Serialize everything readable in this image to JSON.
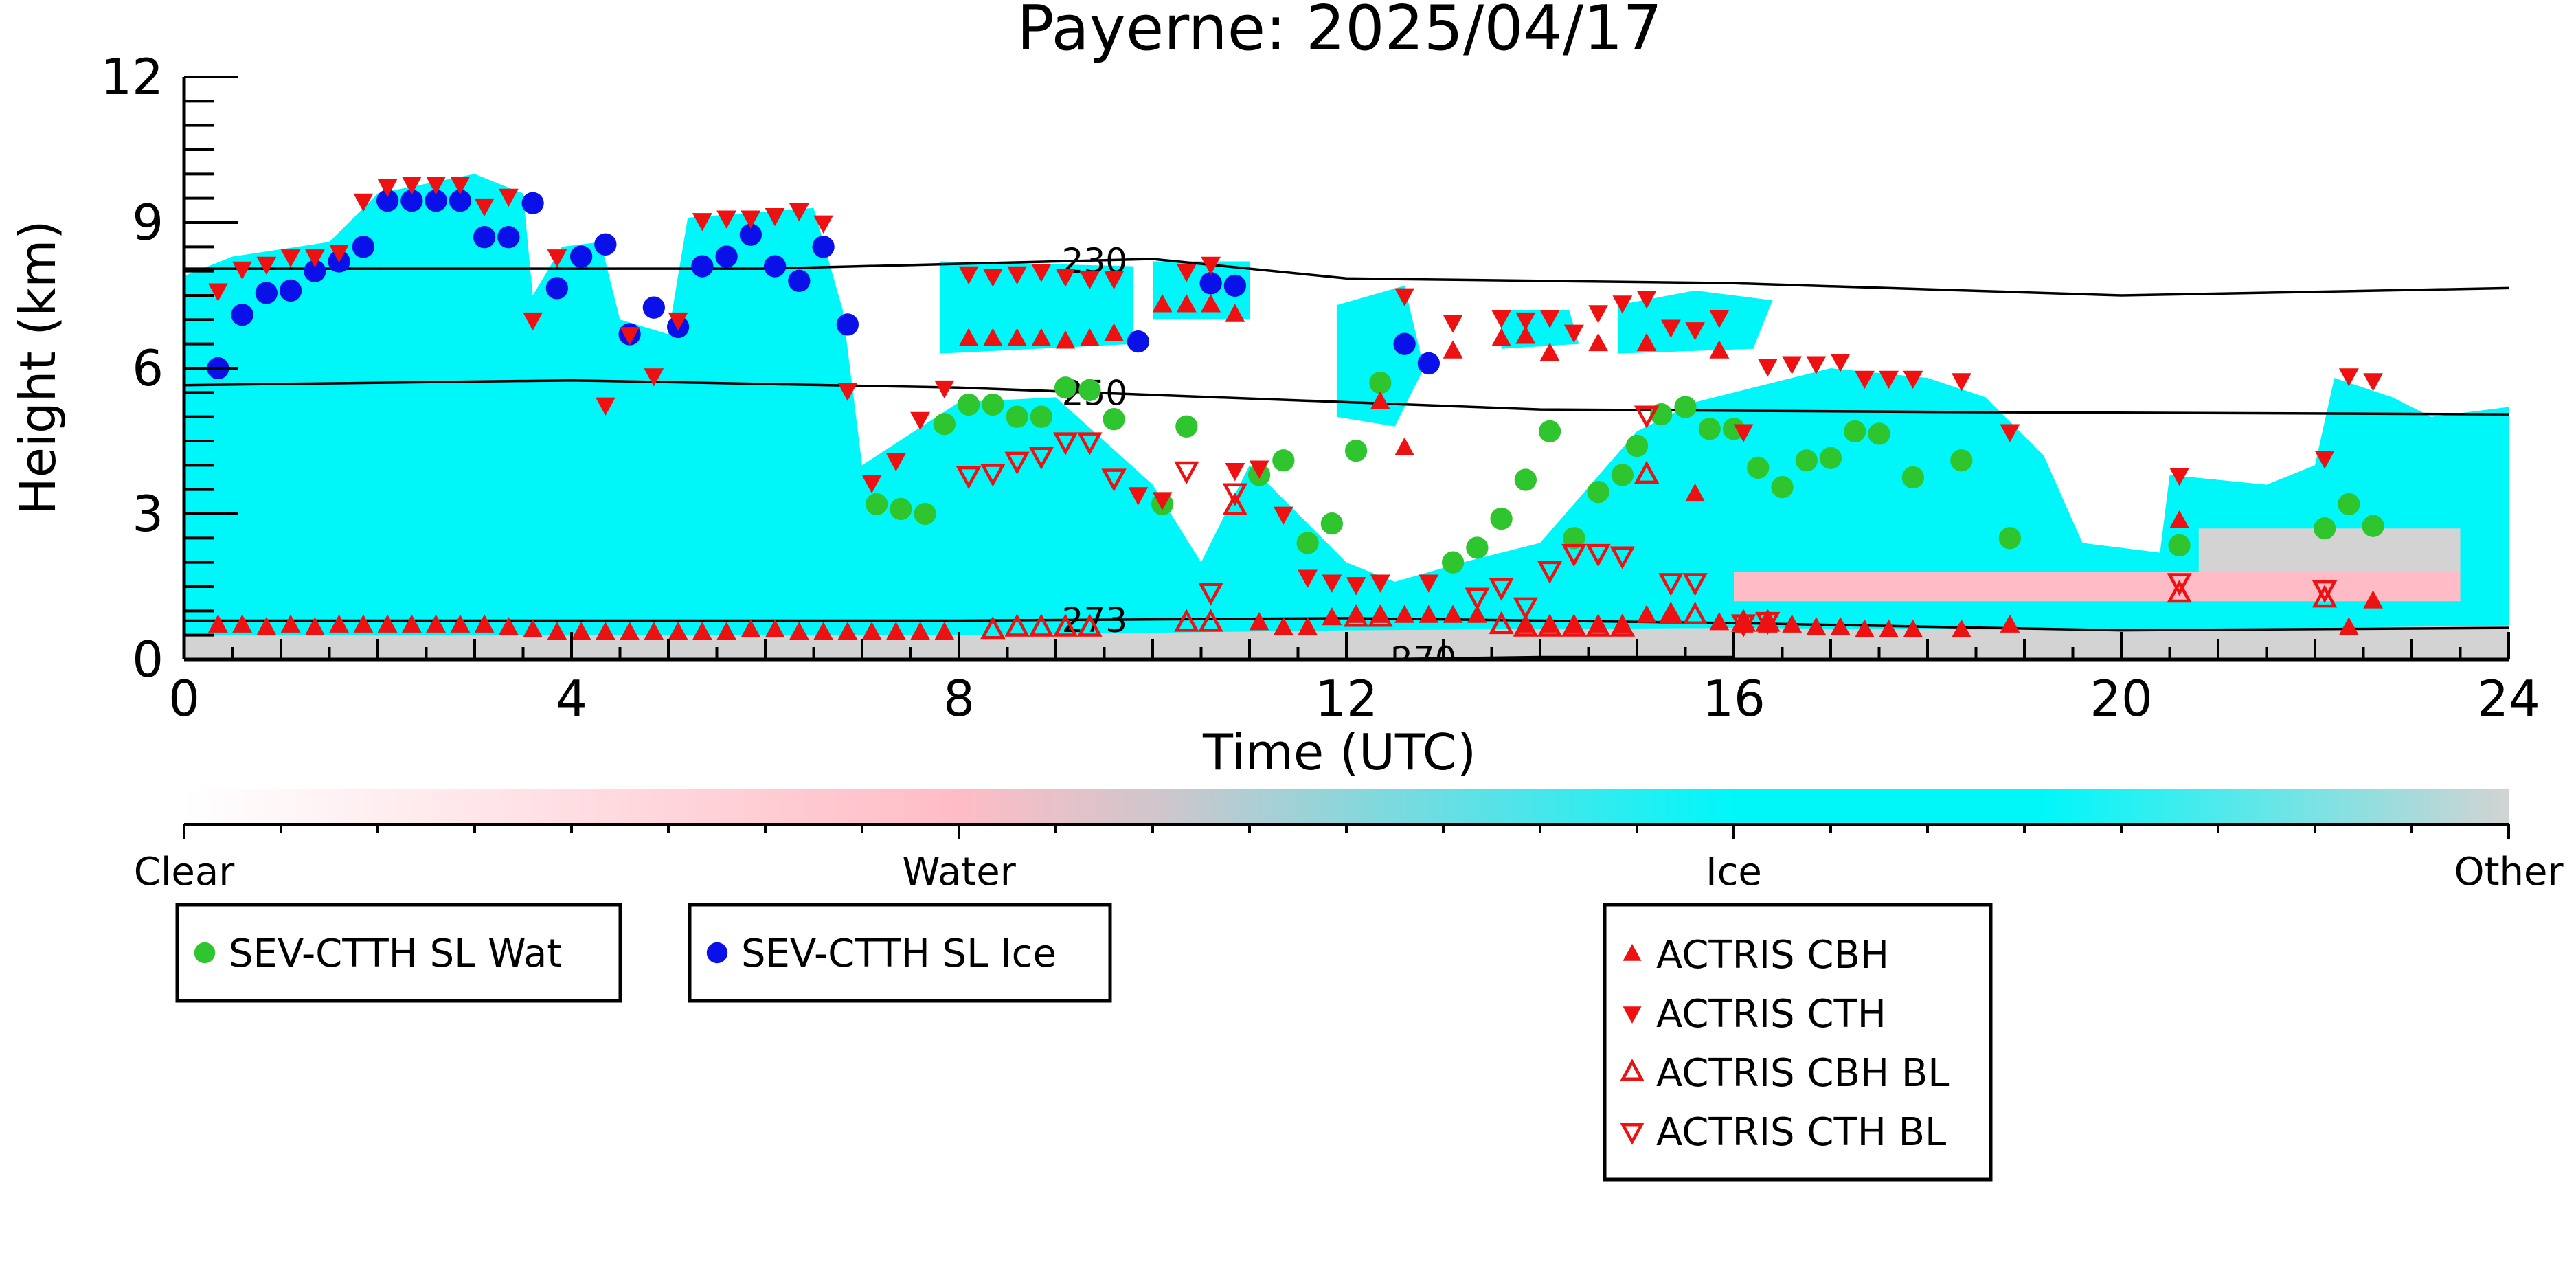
{
  "chart_data": {
    "type": "scatter",
    "title": "Payerne: 2025/04/17",
    "xlabel": "Time (UTC)",
    "ylabel": "Height (km)",
    "xlim": [
      0,
      24
    ],
    "ylim": [
      0,
      12
    ],
    "x_ticks": [
      "0",
      "4",
      "8",
      "12",
      "16",
      "20",
      "24"
    ],
    "y_ticks": [
      "0",
      "3",
      "6",
      "9",
      "12"
    ],
    "colorbar": {
      "labels": [
        "Clear",
        "Water",
        "Ice",
        "Other"
      ],
      "colors": [
        "#ffffff",
        "#ffbcc6",
        "#00f7fa",
        "#d3d3d3"
      ]
    },
    "isotherms": [
      {
        "label": "230",
        "label_x": 9.4,
        "points": [
          [
            0,
            8.05
          ],
          [
            6,
            8.05
          ],
          [
            10,
            8.25
          ],
          [
            12,
            7.85
          ],
          [
            16,
            7.75
          ],
          [
            20,
            7.5
          ],
          [
            24,
            7.65
          ]
        ]
      },
      {
        "label": "250",
        "label_x": 9.4,
        "points": [
          [
            0,
            5.65
          ],
          [
            4,
            5.75
          ],
          [
            8,
            5.6
          ],
          [
            10,
            5.45
          ],
          [
            14,
            5.15
          ],
          [
            18,
            5.1
          ],
          [
            24,
            5.05
          ]
        ]
      },
      {
        "label": "273",
        "label_x": 9.4,
        "points": [
          [
            0,
            0.8
          ],
          [
            8,
            0.8
          ],
          [
            12,
            0.85
          ],
          [
            16,
            0.75
          ],
          [
            20,
            0.6
          ],
          [
            24,
            0.65
          ]
        ]
      },
      {
        "label": "270",
        "label_x": 12.8,
        "points": [
          [
            12.2,
            0.0
          ],
          [
            14,
            0.05
          ],
          [
            16,
            0.05
          ]
        ]
      }
    ],
    "cloud_regions": [
      {
        "type": "Ice",
        "points": [
          [
            0,
            0.4
          ],
          [
            0,
            7.9
          ],
          [
            0.5,
            8.3
          ],
          [
            1.5,
            8.6
          ],
          [
            2.0,
            9.6
          ],
          [
            3.0,
            10.0
          ],
          [
            3.5,
            9.6
          ],
          [
            3.6,
            7.5
          ],
          [
            3.9,
            8.5
          ],
          [
            4.3,
            8.6
          ],
          [
            4.5,
            7.0
          ],
          [
            5.0,
            6.7
          ],
          [
            5.2,
            9.1
          ],
          [
            6.5,
            9.3
          ],
          [
            6.8,
            7.2
          ],
          [
            7.0,
            4.0
          ],
          [
            8.0,
            5.3
          ],
          [
            9.0,
            5.4
          ],
          [
            10.0,
            3.6
          ],
          [
            10.5,
            2.0
          ],
          [
            11.0,
            4.0
          ],
          [
            12.0,
            2.0
          ],
          [
            12.5,
            1.6
          ],
          [
            13.2,
            2.0
          ],
          [
            14.0,
            2.4
          ],
          [
            15.0,
            4.7
          ],
          [
            15.6,
            5.3
          ],
          [
            16.2,
            5.6
          ],
          [
            17.0,
            6.0
          ],
          [
            18.0,
            5.8
          ],
          [
            18.6,
            5.4
          ],
          [
            19.2,
            4.2
          ],
          [
            19.6,
            2.4
          ],
          [
            20.4,
            2.2
          ],
          [
            20.5,
            3.8
          ],
          [
            21.5,
            3.6
          ],
          [
            22.0,
            4.0
          ],
          [
            22.2,
            5.8
          ],
          [
            22.8,
            5.4
          ],
          [
            23.2,
            5.0
          ],
          [
            24,
            5.2
          ],
          [
            24,
            0.4
          ]
        ]
      },
      {
        "type": "Ice",
        "points": [
          [
            7.8,
            6.3
          ],
          [
            7.8,
            8.2
          ],
          [
            9.8,
            8.1
          ],
          [
            9.8,
            6.5
          ]
        ]
      },
      {
        "type": "Ice",
        "points": [
          [
            10.0,
            7.0
          ],
          [
            10.0,
            8.2
          ],
          [
            11.0,
            8.2
          ],
          [
            11.0,
            7.0
          ]
        ]
      },
      {
        "type": "Ice",
        "points": [
          [
            11.9,
            5.0
          ],
          [
            11.9,
            7.3
          ],
          [
            12.6,
            7.7
          ],
          [
            12.8,
            6.0
          ],
          [
            12.5,
            4.8
          ]
        ]
      },
      {
        "type": "Ice",
        "points": [
          [
            13.6,
            6.4
          ],
          [
            13.6,
            7.2
          ],
          [
            14.3,
            7.2
          ],
          [
            14.4,
            6.5
          ]
        ]
      },
      {
        "type": "Ice",
        "points": [
          [
            14.8,
            6.3
          ],
          [
            14.8,
            7.3
          ],
          [
            15.6,
            7.6
          ],
          [
            16.4,
            7.4
          ],
          [
            16.2,
            6.4
          ]
        ]
      },
      {
        "type": "Other",
        "points": [
          [
            0,
            0
          ],
          [
            0,
            0.5
          ],
          [
            8,
            0.5
          ],
          [
            12,
            0.6
          ],
          [
            16,
            0.65
          ],
          [
            20,
            0.6
          ],
          [
            24,
            0.7
          ],
          [
            24,
            0
          ]
        ]
      },
      {
        "type": "Other",
        "points": [
          [
            20.8,
            1.3
          ],
          [
            20.8,
            2.7
          ],
          [
            23.5,
            2.7
          ],
          [
            23.5,
            1.3
          ]
        ]
      },
      {
        "type": "Water",
        "points": [
          [
            16.0,
            1.2
          ],
          [
            16.0,
            1.8
          ],
          [
            23.5,
            1.8
          ],
          [
            23.5,
            1.2
          ]
        ]
      }
    ],
    "series": [
      {
        "name": "SEV-CTTH SL Wat",
        "marker": "circle",
        "color": "#2ec52e",
        "x": [
          7.15,
          7.4,
          7.65,
          7.85,
          8.1,
          8.35,
          8.6,
          8.85,
          9.1,
          9.35,
          9.6,
          10.1,
          10.35,
          11.1,
          11.35,
          11.6,
          11.85,
          12.1,
          12.35,
          13.1,
          13.35,
          13.6,
          13.85,
          14.1,
          14.35,
          14.6,
          14.85,
          15.0,
          15.25,
          15.5,
          15.75,
          16.0,
          16.25,
          16.5,
          16.75,
          17.0,
          17.25,
          17.5,
          17.85,
          18.35,
          18.85,
          20.6,
          22.1,
          22.35,
          22.6
        ],
        "y": [
          3.2,
          3.1,
          3.0,
          4.85,
          5.25,
          5.25,
          5.0,
          5.0,
          5.6,
          5.55,
          4.95,
          3.2,
          4.8,
          3.8,
          4.1,
          2.4,
          2.8,
          4.3,
          5.7,
          2.0,
          2.3,
          2.9,
          3.7,
          4.7,
          2.5,
          3.45,
          3.8,
          4.4,
          5.05,
          5.2,
          4.75,
          4.75,
          3.95,
          3.55,
          4.1,
          4.15,
          4.7,
          4.65,
          3.75,
          4.1,
          2.5,
          2.35,
          2.7,
          3.2,
          2.75
        ]
      },
      {
        "name": "SEV-CTTH SL Ice",
        "marker": "circle",
        "color": "#0a10e8",
        "x": [
          0.35,
          0.6,
          0.85,
          1.1,
          1.35,
          1.6,
          1.85,
          2.1,
          2.35,
          2.6,
          2.85,
          3.1,
          3.35,
          3.6,
          3.85,
          4.1,
          4.35,
          4.6,
          4.85,
          5.1,
          5.35,
          5.6,
          5.85,
          6.1,
          6.35,
          6.6,
          6.85,
          9.85,
          10.6,
          10.85,
          12.6,
          12.85
        ],
        "y": [
          6.0,
          7.1,
          7.55,
          7.6,
          8.0,
          8.2,
          8.5,
          9.45,
          9.45,
          9.45,
          9.45,
          8.7,
          8.7,
          9.4,
          7.65,
          8.3,
          8.55,
          6.7,
          7.25,
          6.85,
          8.1,
          8.3,
          8.75,
          8.1,
          7.8,
          8.5,
          6.9,
          6.55,
          7.75,
          7.7,
          6.5,
          6.1
        ]
      },
      {
        "name": "ACTRIS CBH",
        "marker": "triangle-up",
        "color": "#ee1111",
        "filled": true,
        "x": [
          0.35,
          0.6,
          0.85,
          1.1,
          1.35,
          1.6,
          1.85,
          2.1,
          2.35,
          2.6,
          2.85,
          3.1,
          3.35,
          3.6,
          3.85,
          4.1,
          4.35,
          4.6,
          4.85,
          5.1,
          5.35,
          5.6,
          5.85,
          6.1,
          6.35,
          6.6,
          6.85,
          7.1,
          7.35,
          7.6,
          7.85,
          8.1,
          8.35,
          8.6,
          8.85,
          9.1,
          9.35,
          9.6,
          10.1,
          10.35,
          10.6,
          10.85,
          11.1,
          11.35,
          11.6,
          11.85,
          12.1,
          12.35,
          12.6,
          12.85,
          13.1,
          13.35,
          13.6,
          13.85,
          14.1,
          14.35,
          14.6,
          14.85,
          15.1,
          15.35,
          15.6,
          15.85,
          16.1,
          16.35,
          16.6,
          16.85,
          17.1,
          17.35,
          17.6,
          17.85,
          18.35,
          18.85,
          20.6,
          22.35,
          22.6,
          12.35,
          12.6,
          13.1,
          13.85,
          14.1,
          14.35,
          14.6,
          14.85,
          15.1,
          15.35,
          15.85,
          16.1
        ],
        "y": [
          0.7,
          0.7,
          0.65,
          0.7,
          0.65,
          0.7,
          0.7,
          0.7,
          0.7,
          0.7,
          0.7,
          0.7,
          0.65,
          0.6,
          0.55,
          0.55,
          0.55,
          0.55,
          0.55,
          0.55,
          0.55,
          0.55,
          0.6,
          0.6,
          0.55,
          0.55,
          0.55,
          0.55,
          0.55,
          0.55,
          0.55,
          6.6,
          6.6,
          6.6,
          6.6,
          6.55,
          6.6,
          6.7,
          7.3,
          7.3,
          7.3,
          7.1,
          0.75,
          0.65,
          0.65,
          0.85,
          0.9,
          5.3,
          4.35,
          0.9,
          6.35,
          0.9,
          6.6,
          0.7,
          6.3,
          0.7,
          6.5,
          0.7,
          6.5,
          0.9,
          3.4,
          6.35,
          0.7,
          0.7,
          0.7,
          0.65,
          0.65,
          0.6,
          0.6,
          0.6,
          0.6,
          0.7,
          2.85,
          0.65,
          1.2,
          0.9,
          0.9,
          0.9,
          6.65,
          0.7,
          0.7,
          0.7,
          0.7,
          0.9,
          0.9,
          0.75,
          0.75
        ]
      },
      {
        "name": "ACTRIS CTH",
        "marker": "triangle-down",
        "color": "#ee1111",
        "filled": true,
        "x": [
          0.35,
          0.6,
          0.85,
          1.1,
          1.35,
          1.6,
          1.85,
          2.1,
          2.35,
          2.6,
          2.85,
          3.1,
          3.35,
          3.6,
          3.85,
          4.35,
          4.6,
          4.85,
          5.1,
          5.35,
          5.6,
          5.85,
          6.1,
          6.35,
          6.6,
          6.85,
          7.1,
          7.35,
          7.6,
          7.85,
          8.1,
          8.35,
          8.6,
          8.85,
          9.1,
          9.35,
          9.6,
          9.85,
          10.1,
          10.35,
          10.6,
          10.85,
          11.1,
          11.35,
          11.6,
          11.85,
          12.1,
          12.35,
          12.6,
          12.85,
          13.1,
          13.6,
          13.85,
          14.1,
          14.35,
          14.6,
          14.85,
          15.1,
          15.35,
          15.6,
          15.85,
          16.1,
          16.35,
          16.6,
          16.85,
          17.1,
          17.35,
          17.6,
          17.85,
          18.35,
          18.85,
          20.6,
          22.1,
          22.35,
          22.6
        ],
        "y": [
          7.6,
          8.05,
          8.15,
          8.3,
          8.3,
          8.4,
          9.45,
          9.75,
          9.8,
          9.8,
          9.8,
          9.35,
          9.55,
          7.0,
          8.3,
          5.25,
          6.7,
          5.85,
          7.0,
          9.05,
          9.1,
          9.1,
          9.15,
          9.25,
          9.0,
          5.55,
          3.65,
          4.1,
          4.95,
          5.6,
          7.95,
          7.9,
          7.95,
          8.0,
          7.9,
          7.85,
          7.85,
          3.4,
          3.3,
          8.0,
          8.15,
          3.9,
          3.95,
          3.0,
          1.7,
          1.6,
          1.55,
          1.6,
          7.5,
          1.6,
          6.95,
          7.05,
          7.0,
          7.05,
          6.75,
          7.15,
          7.35,
          7.45,
          6.85,
          6.8,
          7.05,
          4.7,
          6.05,
          6.1,
          6.1,
          6.15,
          5.8,
          5.8,
          5.8,
          5.75,
          4.7,
          3.8,
          4.15,
          5.85,
          5.75
        ]
      },
      {
        "name": "ACTRIS CBH BL",
        "marker": "triangle-up",
        "color": "#ee1111",
        "filled": false,
        "x": [
          8.35,
          8.6,
          8.85,
          9.1,
          9.35,
          10.35,
          10.6,
          10.85,
          12.1,
          12.35,
          13.6,
          13.85,
          14.1,
          14.35,
          14.6,
          14.85,
          15.1,
          15.35,
          15.6,
          16.1,
          16.35,
          20.6,
          22.1
        ],
        "y": [
          0.6,
          0.65,
          0.65,
          0.65,
          0.65,
          0.75,
          0.75,
          3.15,
          0.85,
          0.85,
          0.7,
          0.65,
          0.65,
          0.65,
          0.65,
          0.65,
          3.8,
          0.9,
          0.9,
          0.75,
          0.75,
          1.35,
          1.25
        ]
      },
      {
        "name": "ACTRIS CTH BL",
        "marker": "triangle-down",
        "color": "#ee1111",
        "filled": false,
        "x": [
          8.1,
          8.35,
          8.6,
          8.85,
          9.1,
          9.35,
          9.6,
          10.35,
          10.6,
          10.85,
          13.35,
          13.6,
          13.85,
          14.1,
          14.35,
          14.6,
          14.85,
          15.1,
          15.35,
          15.6,
          16.1,
          16.35,
          20.6,
          22.1
        ],
        "y": [
          3.8,
          3.85,
          4.1,
          4.2,
          4.5,
          4.5,
          3.75,
          3.9,
          1.4,
          3.45,
          1.3,
          1.5,
          1.1,
          1.85,
          2.2,
          2.2,
          2.15,
          5.05,
          1.6,
          1.6,
          0.75,
          0.8,
          1.6,
          1.45
        ]
      }
    ]
  }
}
